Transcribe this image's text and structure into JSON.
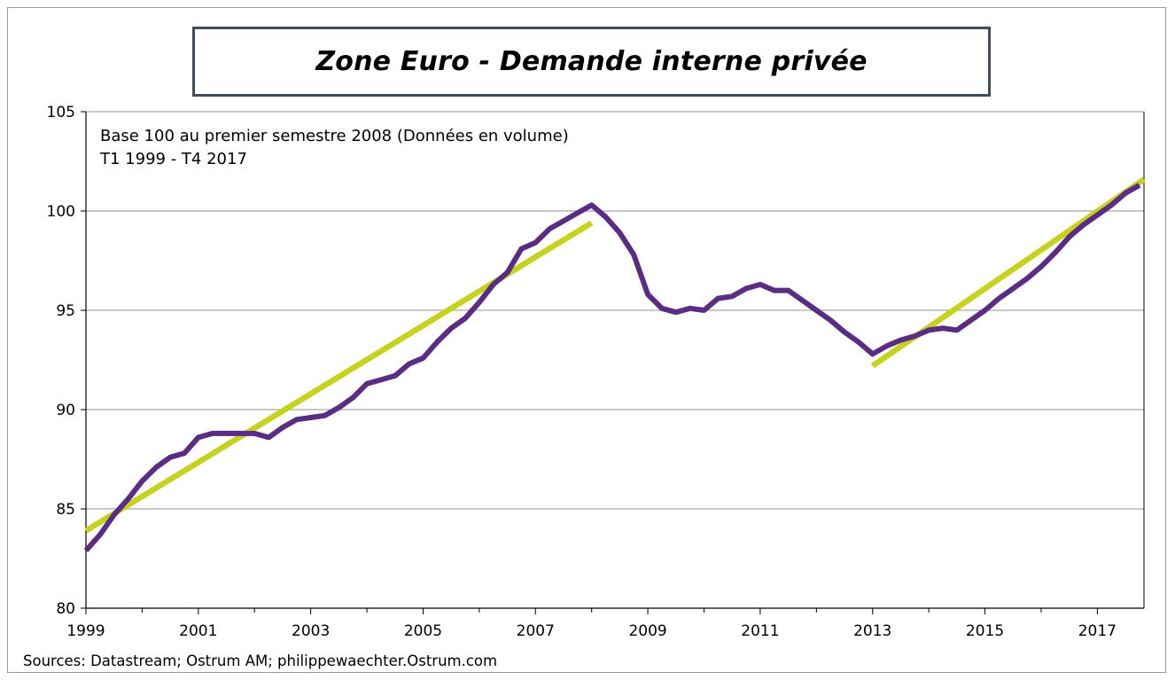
{
  "chart_data": {
    "type": "line",
    "title": "Zone Euro - Demande interne privée",
    "subtitle_lines": [
      "Base 100 au premier  semestre 2008 (Données en volume)",
      "T1 1999 - T4 2017"
    ],
    "source": "Sources: Datastream; Ostrum AM; philippewaechter.Ostrum.com",
    "xlabel": "",
    "ylabel": "",
    "x_range": [
      1999.0,
      2017.83
    ],
    "ylim": [
      80,
      105
    ],
    "y_ticks": [
      "80",
      "85",
      "90",
      "95",
      "100",
      "105"
    ],
    "x_ticks": [
      "1999",
      "2001",
      "2003",
      "2005",
      "2007",
      "2009",
      "2011",
      "2013",
      "2015",
      "2017"
    ],
    "grid": "horizontal",
    "colors": {
      "series": "#5b2c83",
      "trend": "#c5d31f",
      "grid": "#a6a6a6",
      "title_border": "#3b4d5e"
    },
    "series": [
      {
        "x": [
          1999.0,
          1999.25,
          1999.5,
          1999.75,
          2000.0,
          2000.25,
          2000.5,
          2000.75,
          2001.0,
          2001.25,
          2001.5,
          2001.75,
          2002.0,
          2002.25,
          2002.5,
          2002.75,
          2003.0,
          2003.25,
          2003.5,
          2003.75,
          2004.0,
          2004.25,
          2004.5,
          2004.75,
          2005.0,
          2005.25,
          2005.5,
          2005.75,
          2006.0,
          2006.25,
          2006.5,
          2006.75,
          2007.0,
          2007.25,
          2007.5,
          2007.75,
          2008.0,
          2008.25,
          2008.5,
          2008.75,
          2009.0,
          2009.25,
          2009.5,
          2009.75,
          2010.0,
          2010.25,
          2010.5,
          2010.75,
          2011.0,
          2011.25,
          2011.5,
          2011.75,
          2012.0,
          2012.25,
          2012.5,
          2012.75,
          2013.0,
          2013.25,
          2013.5,
          2013.75,
          2014.0,
          2014.25,
          2014.5,
          2014.75,
          2015.0,
          2015.25,
          2015.5,
          2015.75,
          2016.0,
          2016.25,
          2016.5,
          2016.75,
          2017.0,
          2017.25,
          2017.5,
          2017.75
        ],
        "y": [
          82.9,
          83.7,
          84.7,
          85.5,
          86.4,
          87.1,
          87.6,
          87.8,
          88.6,
          88.8,
          88.8,
          88.8,
          88.8,
          88.6,
          89.1,
          89.5,
          89.6,
          89.7,
          90.1,
          90.6,
          91.3,
          91.5,
          91.7,
          92.3,
          92.6,
          93.4,
          94.1,
          94.6,
          95.4,
          96.3,
          96.9,
          98.1,
          98.4,
          99.1,
          99.5,
          99.9,
          100.3,
          99.7,
          98.9,
          97.8,
          95.8,
          95.1,
          94.9,
          95.1,
          95.0,
          95.6,
          95.7,
          96.1,
          96.3,
          96.0,
          96.0,
          95.5,
          95.0,
          94.5,
          93.9,
          93.4,
          92.8,
          93.2,
          93.5,
          93.7,
          94.0,
          94.1,
          94.0,
          94.5,
          95.0,
          95.6,
          96.1,
          96.6,
          97.2,
          97.9,
          98.7,
          99.3,
          99.8,
          100.3,
          100.9,
          101.3
        ]
      },
      {
        "x": [
          1999.0,
          2008.0
        ],
        "y": [
          83.9,
          99.4
        ]
      },
      {
        "x": [
          2013.0,
          2017.83
        ],
        "y": [
          92.2,
          101.6
        ]
      }
    ]
  }
}
